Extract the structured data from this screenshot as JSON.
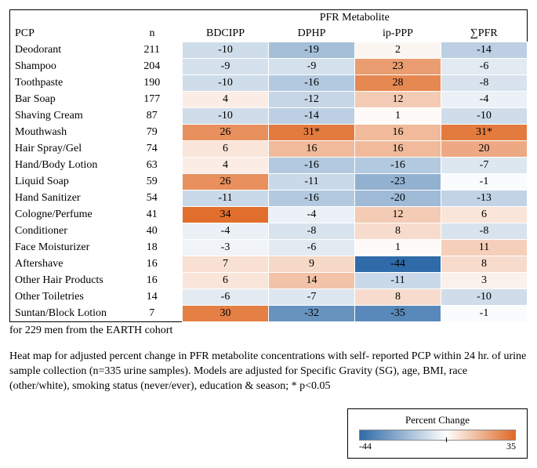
{
  "title_group": "PFR Metabolite",
  "col_pcp": "PCP",
  "col_n": "n",
  "metabolites": [
    "BDCIPP",
    "DPHP",
    "ip-PPP",
    "∑PFR"
  ],
  "color_scale": {
    "min": -44,
    "max": 35,
    "min_color": "#2f6ba8",
    "mid_color": "#fefefe",
    "max_color": "#e06a26"
  },
  "rows": [
    {
      "pcp": "Deodorant",
      "n": 211,
      "v": [
        "-10",
        "-19",
        "2",
        "-14"
      ]
    },
    {
      "pcp": "Shampoo",
      "n": 204,
      "v": [
        "-9",
        "-9",
        "23",
        "-6"
      ]
    },
    {
      "pcp": "Toothpaste",
      "n": 190,
      "v": [
        "-10",
        "-16",
        "28",
        "-8"
      ]
    },
    {
      "pcp": "Bar Soap",
      "n": 177,
      "v": [
        "4",
        "-12",
        "12",
        "-4"
      ]
    },
    {
      "pcp": "Shaving Cream",
      "n": 87,
      "v": [
        "-10",
        "-14",
        "1",
        "-10"
      ]
    },
    {
      "pcp": "Mouthwash",
      "n": 79,
      "v": [
        "26",
        "31*",
        "16",
        "31*"
      ]
    },
    {
      "pcp": "Hair Spray/Gel",
      "n": 74,
      "v": [
        "6",
        "16",
        "16",
        "20"
      ]
    },
    {
      "pcp": "Hand/Body Lotion",
      "n": 63,
      "v": [
        "4",
        "-16",
        "-16",
        "-7"
      ]
    },
    {
      "pcp": "Liquid Soap",
      "n": 59,
      "v": [
        "26",
        "-11",
        "-23",
        "-1"
      ]
    },
    {
      "pcp": "Hand Sanitizer",
      "n": 54,
      "v": [
        "-11",
        "-16",
        "-20",
        "-13"
      ]
    },
    {
      "pcp": "Cologne/Perfume",
      "n": 41,
      "v": [
        "34",
        "-4",
        "12",
        "6"
      ]
    },
    {
      "pcp": "Conditioner",
      "n": 40,
      "v": [
        "-4",
        "-8",
        "8",
        "-8"
      ]
    },
    {
      "pcp": "Face Moisturizer",
      "n": 18,
      "v": [
        "-3",
        "-6",
        "1",
        "11"
      ]
    },
    {
      "pcp": "Aftershave",
      "n": 16,
      "v": [
        "7",
        "9",
        "-44",
        "8"
      ]
    },
    {
      "pcp": "Other Hair Products",
      "n": 16,
      "v": [
        "6",
        "14",
        "-11",
        "3"
      ]
    },
    {
      "pcp": "Other Toiletries",
      "n": 14,
      "v": [
        "-6",
        "-7",
        "8",
        "-10"
      ]
    },
    {
      "pcp": "Suntan/Block Lotion",
      "n": 7,
      "v": [
        "30",
        "-32",
        "-35",
        "-1"
      ]
    }
  ],
  "caption_line1": "for 229 men from the EARTH cohort",
  "caption_body": "Heat map for adjusted percent change in PFR metabolite concentrations with self- reported PCP within 24 hr. of urine sample collection (n=335 urine samples).  Models are adjusted for Specific Gravity (SG), age, BMI, race (other/white), smoking status (never/ever), education & season; * p<0.05",
  "legend_title": "Percent Change",
  "legend_min_label": "-44",
  "legend_max_label": "35"
}
